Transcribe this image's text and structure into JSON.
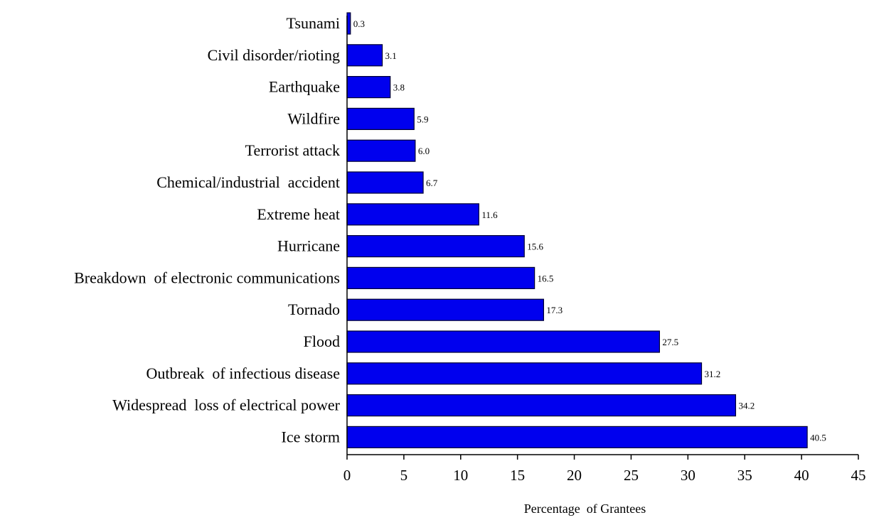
{
  "chart_data": {
    "type": "bar",
    "orientation": "horizontal",
    "categories": [
      "Tsunami",
      "Civil disorder/rioting",
      "Earthquake",
      "Wildfire",
      "Terrorist attack",
      "Chemical/industrial  accident",
      "Extreme heat",
      "Hurricane",
      "Breakdown  of electronic communications",
      "Tornado",
      "Flood",
      "Outbreak  of infectious disease",
      "Widespread  loss of electrical power",
      "Ice storm"
    ],
    "values": [
      0.3,
      3.1,
      3.8,
      5.9,
      6.0,
      6.7,
      11.6,
      15.6,
      16.5,
      17.3,
      27.5,
      31.2,
      34.2,
      40.5
    ],
    "value_labels": [
      "0.3",
      "3.1",
      "3.8",
      "5.9",
      "6.0",
      "6.7",
      "11.6",
      "15.6",
      "16.5",
      "17.3",
      "27.5",
      "31.2",
      "34.2",
      "40.5"
    ],
    "xlabel": "Percentage  of Grantees",
    "xlim": [
      0,
      45
    ],
    "xticks": [
      0,
      5,
      10,
      15,
      20,
      25,
      30,
      35,
      40,
      45
    ],
    "bar_color": "#0000ee",
    "bar_edge_color": "#000033",
    "grid": false,
    "legend": "none"
  }
}
